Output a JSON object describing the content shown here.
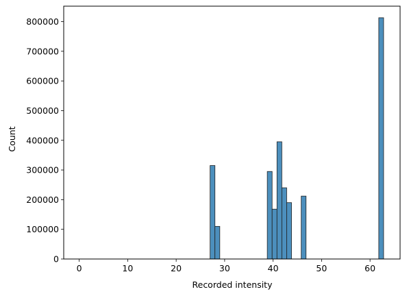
{
  "chart_data": {
    "type": "bar",
    "subtype": "histogram",
    "title": "",
    "xlabel": "Recorded intensity",
    "ylabel": "Count",
    "xlim": [
      -3.2,
      66.2
    ],
    "ylim": [
      0,
      852000
    ],
    "x_ticks": [
      0,
      10,
      20,
      30,
      40,
      50,
      60
    ],
    "y_ticks": [
      0,
      100000,
      200000,
      300000,
      400000,
      500000,
      600000,
      700000,
      800000
    ],
    "bin_width": 1,
    "bins": [
      {
        "start": 0,
        "value": 0
      },
      {
        "start": 1,
        "value": 0
      },
      {
        "start": 2,
        "value": 0
      },
      {
        "start": 3,
        "value": 0
      },
      {
        "start": 4,
        "value": 0
      },
      {
        "start": 5,
        "value": 0
      },
      {
        "start": 6,
        "value": 0
      },
      {
        "start": 7,
        "value": 0
      },
      {
        "start": 8,
        "value": 0
      },
      {
        "start": 9,
        "value": 0
      },
      {
        "start": 10,
        "value": 0
      },
      {
        "start": 11,
        "value": 0
      },
      {
        "start": 12,
        "value": 0
      },
      {
        "start": 13,
        "value": 0
      },
      {
        "start": 14,
        "value": 0
      },
      {
        "start": 15,
        "value": 0
      },
      {
        "start": 16,
        "value": 0
      },
      {
        "start": 17,
        "value": 0
      },
      {
        "start": 18,
        "value": 0
      },
      {
        "start": 19,
        "value": 0
      },
      {
        "start": 20,
        "value": 0
      },
      {
        "start": 21,
        "value": 0
      },
      {
        "start": 22,
        "value": 0
      },
      {
        "start": 23,
        "value": 0
      },
      {
        "start": 24,
        "value": 0
      },
      {
        "start": 25,
        "value": 0
      },
      {
        "start": 26,
        "value": 0
      },
      {
        "start": 27,
        "value": 315000
      },
      {
        "start": 28,
        "value": 110000
      },
      {
        "start": 29,
        "value": 0
      },
      {
        "start": 30,
        "value": 0
      },
      {
        "start": 31,
        "value": 0
      },
      {
        "start": 32,
        "value": 0
      },
      {
        "start": 33,
        "value": 0
      },
      {
        "start": 34,
        "value": 0
      },
      {
        "start": 35,
        "value": 0
      },
      {
        "start": 36,
        "value": 0
      },
      {
        "start": 37,
        "value": 0
      },
      {
        "start": 38,
        "value": 0
      },
      {
        "start": 38.8,
        "value": 295000
      },
      {
        "start": 39.8,
        "value": 168000
      },
      {
        "start": 40.8,
        "value": 395000
      },
      {
        "start": 41.8,
        "value": 240000
      },
      {
        "start": 42.8,
        "value": 190000
      },
      {
        "start": 43.8,
        "value": 0
      },
      {
        "start": 44.8,
        "value": 0
      },
      {
        "start": 45.8,
        "value": 212000
      },
      {
        "start": 46.8,
        "value": 0
      },
      {
        "start": 47.8,
        "value": 0
      },
      {
        "start": 48.8,
        "value": 0
      },
      {
        "start": 49.8,
        "value": 0
      },
      {
        "start": 50.8,
        "value": 0
      },
      {
        "start": 51.8,
        "value": 0
      },
      {
        "start": 52.8,
        "value": 0
      },
      {
        "start": 53.8,
        "value": 0
      },
      {
        "start": 54.8,
        "value": 0
      },
      {
        "start": 55.8,
        "value": 0
      },
      {
        "start": 56.8,
        "value": 0
      },
      {
        "start": 57.8,
        "value": 0
      },
      {
        "start": 58.8,
        "value": 0
      },
      {
        "start": 59.8,
        "value": 0
      },
      {
        "start": 60.8,
        "value": 0
      },
      {
        "start": 61.8,
        "value": 813000
      }
    ],
    "grid": false,
    "legend": "none",
    "bar_color": "#4c8fbd",
    "edge_color": "#1f1f1f"
  }
}
